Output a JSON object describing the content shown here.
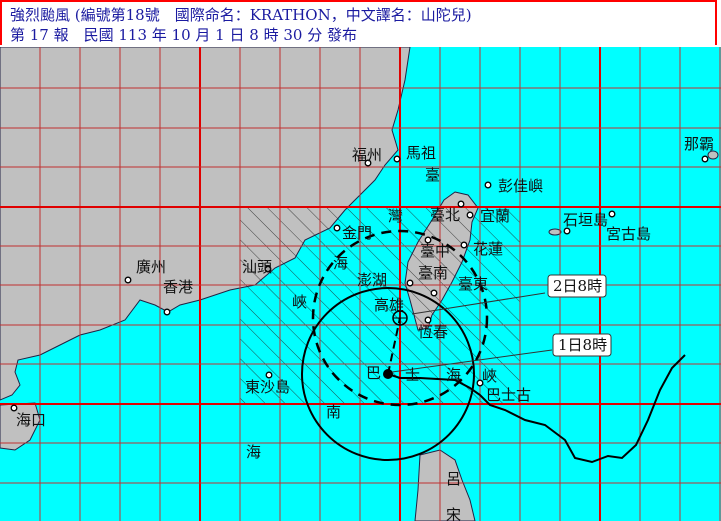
{
  "header": {
    "line1": "強烈颱風 (編號第18號　國際命名：KRATHON，中文譯名：山陀兒)",
    "line2": "第 17 報　民國 113 年 10 月 1 日 8 時 30 分 發布"
  },
  "colors": {
    "sea": "#00ffff",
    "land": "#c0c0c0",
    "grid": "#ff0000",
    "header_text": "#1a1aa0",
    "border": "#ff0000"
  },
  "places": [
    "福州",
    "馬祖",
    "臺",
    "彭佳嶼",
    "灣",
    "臺北",
    "宜蘭",
    "金門",
    "臺中",
    "花蓮",
    "海",
    "澎湖",
    "臺南",
    "臺東",
    "峽",
    "高雄",
    "恆春",
    "廣州",
    "香港",
    "汕頭",
    "東沙島",
    "巴",
    "士",
    "海",
    "峽",
    "巴士古",
    "南",
    "海",
    "海口",
    "那霸",
    "石垣島",
    "宮古島",
    "呂",
    "宋"
  ],
  "forecast_labels": {
    "current": "1日8時",
    "forecast": "2日8時"
  }
}
